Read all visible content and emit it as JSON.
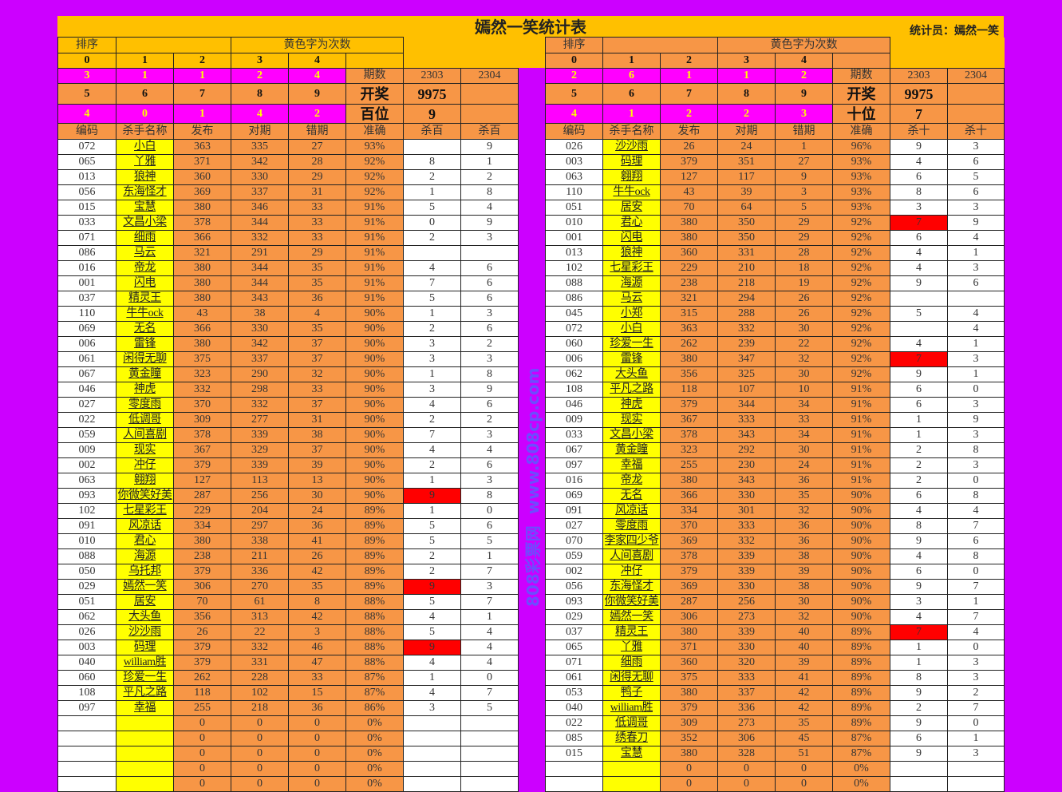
{
  "title": "嫣然一笑统计表",
  "statistician": "统计员：嫣然一笑",
  "watermark": [
    "808彩票网",
    "www.808cp.com"
  ],
  "colors": {
    "background": "#cc00ff",
    "gold": "#ffc000",
    "orange": "#f79646",
    "magenta": "#ff00ff",
    "name_cell": "#ffff00",
    "highlight": "#ff0000"
  },
  "left": {
    "rank_label": "排序",
    "yellow_note": "黄色字为次数",
    "digits_a": [
      "0",
      "1",
      "2",
      "3",
      "4"
    ],
    "counts_a": [
      "3",
      "1",
      "1",
      "2",
      "4"
    ],
    "digits_b": [
      "5",
      "6",
      "7",
      "8",
      "9"
    ],
    "counts_b": [
      "4",
      "0",
      "1",
      "4",
      "2"
    ],
    "period_label": "期数",
    "periods": [
      "2303",
      "2304"
    ],
    "draw_label": "开奖",
    "draw_value": "9975",
    "position_label": "百位",
    "position_value": "9",
    "columns": [
      "编码",
      "杀手名称",
      "发布",
      "对期",
      "错期",
      "准确",
      "杀百",
      "杀百"
    ],
    "rows": [
      [
        "072",
        "小白",
        "363",
        "335",
        "27",
        "93%",
        "",
        "9",
        0
      ],
      [
        "065",
        "丫雅",
        "371",
        "342",
        "28",
        "92%",
        "8",
        "1",
        0
      ],
      [
        "013",
        "狼神",
        "360",
        "330",
        "29",
        "92%",
        "2",
        "2",
        0
      ],
      [
        "056",
        "东海怪才",
        "369",
        "337",
        "31",
        "92%",
        "1",
        "8",
        0
      ],
      [
        "015",
        "宝慧",
        "380",
        "346",
        "33",
        "91%",
        "5",
        "4",
        0
      ],
      [
        "033",
        "文昌小梁",
        "378",
        "344",
        "33",
        "91%",
        "0",
        "9",
        0
      ],
      [
        "071",
        "细雨",
        "366",
        "332",
        "33",
        "91%",
        "2",
        "3",
        0
      ],
      [
        "086",
        "马云",
        "321",
        "291",
        "29",
        "91%",
        "",
        "",
        0
      ],
      [
        "016",
        "帝龙",
        "380",
        "344",
        "35",
        "91%",
        "4",
        "6",
        0
      ],
      [
        "001",
        "闪电",
        "380",
        "344",
        "35",
        "91%",
        "7",
        "6",
        0
      ],
      [
        "037",
        "精灵王",
        "380",
        "343",
        "36",
        "91%",
        "5",
        "6",
        0
      ],
      [
        "110",
        "牛牛ock",
        "43",
        "38",
        "4",
        "90%",
        "1",
        "3",
        0
      ],
      [
        "069",
        "无名",
        "366",
        "330",
        "35",
        "90%",
        "2",
        "6",
        0
      ],
      [
        "006",
        "雷锋",
        "380",
        "342",
        "37",
        "90%",
        "3",
        "2",
        0
      ],
      [
        "061",
        "闲得无聊",
        "375",
        "337",
        "37",
        "90%",
        "3",
        "3",
        0
      ],
      [
        "067",
        "黄金瞳",
        "323",
        "290",
        "32",
        "90%",
        "1",
        "8",
        0
      ],
      [
        "046",
        "神虎",
        "332",
        "298",
        "33",
        "90%",
        "3",
        "9",
        0
      ],
      [
        "027",
        "零度雨",
        "370",
        "332",
        "37",
        "90%",
        "4",
        "6",
        0
      ],
      [
        "022",
        "低调哥",
        "309",
        "277",
        "31",
        "90%",
        "2",
        "2",
        0
      ],
      [
        "059",
        "人间喜剧",
        "378",
        "339",
        "38",
        "90%",
        "7",
        "3",
        0
      ],
      [
        "009",
        "现实",
        "367",
        "329",
        "37",
        "90%",
        "4",
        "4",
        0
      ],
      [
        "002",
        "冲仔",
        "379",
        "339",
        "39",
        "90%",
        "2",
        "6",
        0
      ],
      [
        "063",
        "翱翔",
        "127",
        "113",
        "13",
        "90%",
        "1",
        "3",
        0
      ],
      [
        "093",
        "你微笑好美",
        "287",
        "256",
        "30",
        "90%",
        "9",
        "8",
        1
      ],
      [
        "102",
        "七星彩王",
        "229",
        "204",
        "24",
        "89%",
        "1",
        "0",
        0
      ],
      [
        "091",
        "风凉话",
        "334",
        "297",
        "36",
        "89%",
        "5",
        "6",
        0
      ],
      [
        "010",
        "君心",
        "380",
        "338",
        "41",
        "89%",
        "5",
        "5",
        0
      ],
      [
        "088",
        "海源",
        "238",
        "211",
        "26",
        "89%",
        "2",
        "1",
        0
      ],
      [
        "050",
        "乌托邦",
        "379",
        "336",
        "42",
        "89%",
        "2",
        "7",
        0
      ],
      [
        "029",
        "嫣然一笑",
        "306",
        "270",
        "35",
        "89%",
        "9",
        "3",
        1
      ],
      [
        "051",
        "居安",
        "70",
        "61",
        "8",
        "88%",
        "5",
        "7",
        0
      ],
      [
        "062",
        "大头鱼",
        "356",
        "313",
        "42",
        "88%",
        "4",
        "1",
        0
      ],
      [
        "026",
        "沙沙雨",
        "26",
        "22",
        "3",
        "88%",
        "5",
        "4",
        0
      ],
      [
        "003",
        "码理",
        "379",
        "332",
        "46",
        "88%",
        "9",
        "4",
        1
      ],
      [
        "040",
        "william胜",
        "379",
        "331",
        "47",
        "88%",
        "4",
        "4",
        0
      ],
      [
        "060",
        "珍爱一生",
        "262",
        "228",
        "33",
        "87%",
        "1",
        "0",
        0
      ],
      [
        "108",
        "平凡之路",
        "118",
        "102",
        "15",
        "87%",
        "4",
        "7",
        0
      ],
      [
        "097",
        "幸福",
        "255",
        "218",
        "36",
        "86%",
        "3",
        "5",
        0
      ],
      [
        "",
        "",
        "0",
        "0",
        "0",
        "0%",
        "",
        "",
        0
      ],
      [
        "",
        "",
        "0",
        "0",
        "0",
        "0%",
        "",
        "",
        0
      ],
      [
        "",
        "",
        "0",
        "0",
        "0",
        "0%",
        "",
        "",
        0
      ],
      [
        "",
        "",
        "0",
        "0",
        "0",
        "0%",
        "",
        "",
        0
      ],
      [
        "",
        "",
        "0",
        "0",
        "0",
        "0%",
        "",
        "",
        0
      ]
    ]
  },
  "right": {
    "rank_label": "排序",
    "yellow_note": "黄色字为次数",
    "digits_a": [
      "0",
      "1",
      "2",
      "3",
      "4"
    ],
    "counts_a": [
      "2",
      "6",
      "1",
      "1",
      "2"
    ],
    "digits_b": [
      "5",
      "6",
      "7",
      "8",
      "9"
    ],
    "counts_b": [
      "4",
      "1",
      "2",
      "2",
      "3"
    ],
    "period_label": "期数",
    "periods": [
      "2303",
      "2304"
    ],
    "draw_label": "开奖",
    "draw_value": "9975",
    "position_label": "十位",
    "position_value": "7",
    "columns": [
      "编码",
      "杀手名称",
      "发布",
      "对期",
      "错期",
      "准确",
      "杀十",
      "杀十"
    ],
    "rows": [
      [
        "026",
        "沙沙雨",
        "26",
        "24",
        "1",
        "96%",
        "9",
        "3",
        0
      ],
      [
        "003",
        "码理",
        "379",
        "351",
        "27",
        "93%",
        "4",
        "6",
        0
      ],
      [
        "063",
        "翱翔",
        "127",
        "117",
        "9",
        "93%",
        "6",
        "5",
        0
      ],
      [
        "110",
        "牛牛ock",
        "43",
        "39",
        "3",
        "93%",
        "8",
        "6",
        0
      ],
      [
        "051",
        "居安",
        "70",
        "64",
        "5",
        "93%",
        "3",
        "3",
        0
      ],
      [
        "010",
        "君心",
        "380",
        "350",
        "29",
        "92%",
        "7",
        "9",
        1
      ],
      [
        "001",
        "闪电",
        "380",
        "350",
        "29",
        "92%",
        "6",
        "4",
        0
      ],
      [
        "013",
        "狼神",
        "360",
        "331",
        "28",
        "92%",
        "4",
        "1",
        0
      ],
      [
        "102",
        "七星彩王",
        "229",
        "210",
        "18",
        "92%",
        "4",
        "3",
        0
      ],
      [
        "088",
        "海源",
        "238",
        "218",
        "19",
        "92%",
        "9",
        "6",
        0
      ],
      [
        "086",
        "马云",
        "321",
        "294",
        "26",
        "92%",
        "",
        "",
        0
      ],
      [
        "045",
        "小郑",
        "315",
        "288",
        "26",
        "92%",
        "5",
        "4",
        0
      ],
      [
        "072",
        "小白",
        "363",
        "332",
        "30",
        "92%",
        "",
        "4",
        0
      ],
      [
        "060",
        "珍爱一生",
        "262",
        "239",
        "22",
        "92%",
        "4",
        "1",
        0
      ],
      [
        "006",
        "雷锋",
        "380",
        "347",
        "32",
        "92%",
        "7",
        "3",
        1
      ],
      [
        "062",
        "大头鱼",
        "356",
        "325",
        "30",
        "92%",
        "9",
        "1",
        0
      ],
      [
        "108",
        "平凡之路",
        "118",
        "107",
        "10",
        "91%",
        "6",
        "0",
        0
      ],
      [
        "046",
        "神虎",
        "379",
        "344",
        "34",
        "91%",
        "6",
        "3",
        0
      ],
      [
        "009",
        "现实",
        "367",
        "333",
        "33",
        "91%",
        "1",
        "9",
        0
      ],
      [
        "033",
        "文昌小梁",
        "378",
        "343",
        "34",
        "91%",
        "1",
        "3",
        0
      ],
      [
        "067",
        "黄金瞳",
        "323",
        "292",
        "30",
        "91%",
        "2",
        "8",
        0
      ],
      [
        "097",
        "幸福",
        "255",
        "230",
        "24",
        "91%",
        "2",
        "3",
        0
      ],
      [
        "016",
        "帝龙",
        "380",
        "343",
        "36",
        "91%",
        "2",
        "0",
        0
      ],
      [
        "069",
        "无名",
        "366",
        "330",
        "35",
        "90%",
        "6",
        "8",
        0
      ],
      [
        "091",
        "风凉话",
        "334",
        "301",
        "32",
        "90%",
        "4",
        "4",
        0
      ],
      [
        "027",
        "零度雨",
        "370",
        "333",
        "36",
        "90%",
        "8",
        "7",
        0
      ],
      [
        "070",
        "李家四少爷",
        "369",
        "332",
        "36",
        "90%",
        "9",
        "6",
        0
      ],
      [
        "059",
        "人间喜剧",
        "378",
        "339",
        "38",
        "90%",
        "4",
        "8",
        0
      ],
      [
        "002",
        "冲仔",
        "379",
        "339",
        "39",
        "90%",
        "6",
        "0",
        0
      ],
      [
        "056",
        "东海怪才",
        "369",
        "330",
        "38",
        "90%",
        "9",
        "7",
        0
      ],
      [
        "093",
        "你微笑好美",
        "287",
        "256",
        "30",
        "90%",
        "3",
        "1",
        0
      ],
      [
        "029",
        "嫣然一笑",
        "306",
        "273",
        "32",
        "90%",
        "4",
        "7",
        0
      ],
      [
        "037",
        "精灵王",
        "380",
        "339",
        "40",
        "89%",
        "7",
        "4",
        1
      ],
      [
        "065",
        "丫雅",
        "371",
        "330",
        "40",
        "89%",
        "1",
        "0",
        0
      ],
      [
        "071",
        "细雨",
        "360",
        "320",
        "39",
        "89%",
        "1",
        "3",
        0
      ],
      [
        "061",
        "闲得无聊",
        "375",
        "333",
        "41",
        "89%",
        "8",
        "3",
        0
      ],
      [
        "053",
        "鸭子",
        "380",
        "337",
        "42",
        "89%",
        "9",
        "2",
        0
      ],
      [
        "040",
        "william胜",
        "379",
        "336",
        "42",
        "89%",
        "2",
        "7",
        0
      ],
      [
        "022",
        "低调哥",
        "309",
        "273",
        "35",
        "89%",
        "9",
        "0",
        0
      ],
      [
        "085",
        "绣春刀",
        "352",
        "306",
        "45",
        "87%",
        "6",
        "1",
        0
      ],
      [
        "015",
        "宝慧",
        "380",
        "328",
        "51",
        "87%",
        "9",
        "3",
        0
      ],
      [
        "",
        "",
        "0",
        "0",
        "0",
        "0%",
        "",
        "",
        0
      ],
      [
        "",
        "",
        "0",
        "0",
        "0",
        "0%",
        "",
        "",
        0
      ]
    ]
  }
}
